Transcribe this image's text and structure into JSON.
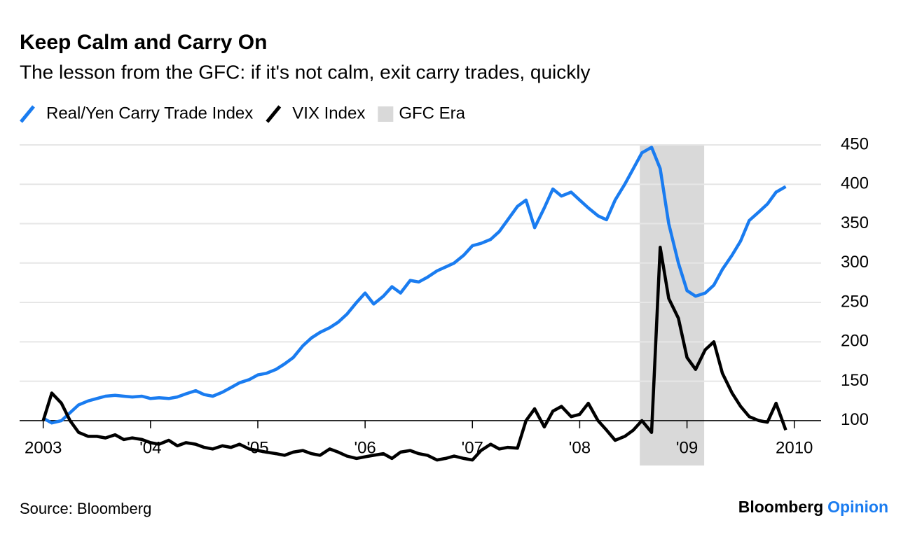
{
  "chart_data": {
    "type": "line",
    "title": "Keep Calm and Carry On",
    "subtitle": "The lesson from the GFC: if it's not calm, exit carry trades, quickly",
    "source": "Source: Bloomberg",
    "brand": [
      "Bloomberg",
      "Opinion"
    ],
    "band": {
      "name": "GFC Era",
      "color": "#d9d9d9",
      "x": [
        2008.56,
        2009.16
      ]
    },
    "x": [
      2003,
      2003.08,
      2003.17,
      2003.25,
      2003.33,
      2003.42,
      2003.5,
      2003.58,
      2003.67,
      2003.75,
      2003.83,
      2003.92,
      2004,
      2004.08,
      2004.17,
      2004.25,
      2004.33,
      2004.42,
      2004.5,
      2004.58,
      2004.67,
      2004.75,
      2004.83,
      2004.92,
      2005,
      2005.08,
      2005.17,
      2005.25,
      2005.33,
      2005.42,
      2005.5,
      2005.58,
      2005.67,
      2005.75,
      2005.83,
      2005.92,
      2006,
      2006.08,
      2006.17,
      2006.25,
      2006.33,
      2006.42,
      2006.5,
      2006.58,
      2006.67,
      2006.75,
      2006.83,
      2006.92,
      2007,
      2007.08,
      2007.17,
      2007.25,
      2007.33,
      2007.42,
      2007.5,
      2007.58,
      2007.67,
      2007.75,
      2007.83,
      2007.92,
      2008,
      2008.08,
      2008.17,
      2008.25,
      2008.33,
      2008.42,
      2008.5,
      2008.58,
      2008.67,
      2008.75,
      2008.83,
      2008.92,
      2009,
      2009.08,
      2009.17,
      2009.25,
      2009.33,
      2009.42,
      2009.5,
      2009.58,
      2009.67,
      2009.75,
      2009.83,
      2009.92
    ],
    "series": [
      {
        "name": "Real/Yen Carry Trade Index",
        "color": "#1a7cf0",
        "values": [
          103,
          97,
          100,
          110,
          120,
          125,
          128,
          131,
          132,
          131,
          130,
          131,
          128,
          129,
          128,
          130,
          134,
          138,
          133,
          131,
          136,
          142,
          148,
          152,
          158,
          160,
          165,
          172,
          180,
          195,
          205,
          212,
          218,
          225,
          235,
          250,
          262,
          248,
          258,
          270,
          262,
          278,
          276,
          282,
          290,
          295,
          300,
          310,
          322,
          325,
          330,
          340,
          355,
          372,
          380,
          345,
          370,
          394,
          385,
          390,
          380,
          370,
          360,
          355,
          380,
          400,
          420,
          440,
          447,
          420,
          350,
          300,
          265,
          258,
          262,
          272,
          292,
          310,
          328,
          354,
          365,
          375,
          390,
          397
        ]
      },
      {
        "name": "VIX Index",
        "color": "#000000",
        "values": [
          100,
          135,
          122,
          100,
          85,
          80,
          80,
          78,
          82,
          76,
          78,
          76,
          72,
          70,
          75,
          68,
          72,
          70,
          66,
          64,
          68,
          66,
          70,
          64,
          62,
          60,
          58,
          56,
          60,
          62,
          58,
          56,
          64,
          60,
          55,
          52,
          54,
          56,
          58,
          52,
          60,
          62,
          58,
          56,
          50,
          52,
          55,
          52,
          50,
          62,
          70,
          64,
          66,
          65,
          100,
          115,
          92,
          112,
          118,
          105,
          108,
          122,
          100,
          88,
          75,
          80,
          88,
          100,
          85,
          320,
          255,
          230,
          180,
          165,
          190,
          200,
          160,
          135,
          118,
          105,
          100,
          98,
          122,
          88
        ]
      }
    ],
    "xlim": [
      2002.78,
      2010.25
    ],
    "xticks": [
      {
        "value": 2003,
        "label": "2003"
      },
      {
        "value": 2004,
        "label": "'04"
      },
      {
        "value": 2005,
        "label": "'05"
      },
      {
        "value": 2006,
        "label": "'06"
      },
      {
        "value": 2007,
        "label": "'07"
      },
      {
        "value": 2008,
        "label": "'08"
      },
      {
        "value": 2009,
        "label": "'09"
      },
      {
        "value": 2010,
        "label": "2010"
      }
    ],
    "ylim": [
      43,
      450
    ],
    "yticks": [
      100,
      150,
      200,
      250,
      300,
      350,
      400,
      450
    ],
    "grid": true
  }
}
